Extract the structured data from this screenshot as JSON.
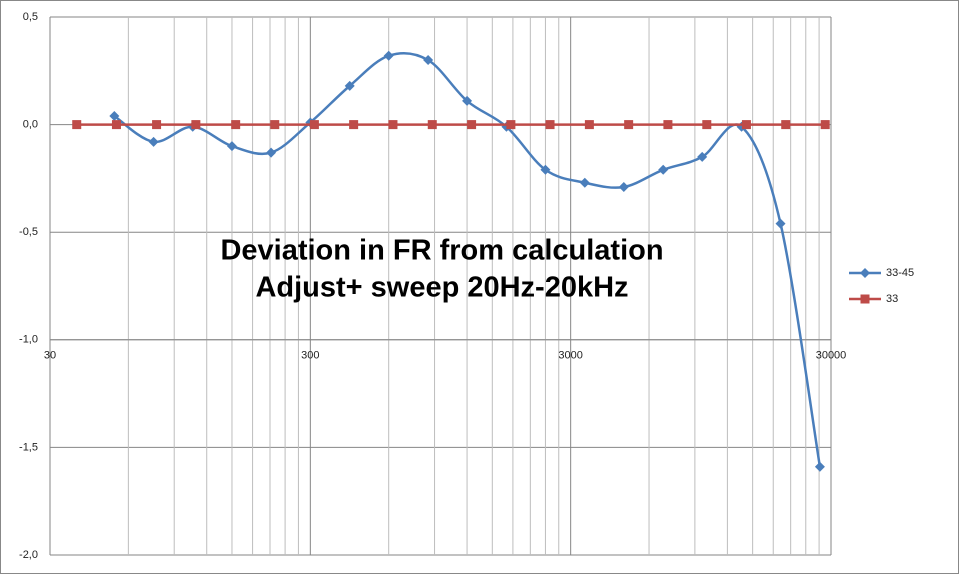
{
  "chart_data": {
    "type": "line",
    "annotation": [
      "Deviation in FR from calculation",
      "Adjust+ sweep 20Hz-20kHz"
    ],
    "xscale": "log",
    "xlim": [
      30,
      30000
    ],
    "xticks": [
      30,
      300,
      3000,
      30000
    ],
    "ylim": [
      -2,
      0.5
    ],
    "yticks": [
      {
        "value": -2,
        "label": "-2,0"
      },
      {
        "value": -1.5,
        "label": "-1,5"
      },
      {
        "value": -1,
        "label": "-1,0"
      },
      {
        "value": -0.5,
        "label": "-0,5"
      },
      {
        "value": 0,
        "label": "0,0"
      },
      {
        "value": 0.5,
        "label": "0,5"
      }
    ],
    "x_axis_crosses": -1,
    "grid": true,
    "legend": "right",
    "series": [
      {
        "name": "33-45",
        "color": "#4a7ebb",
        "marker": "diamond",
        "x": [
          53,
          75,
          106,
          150,
          212,
          300,
          425,
          600,
          850,
          1200,
          1700,
          2400,
          3400,
          4800,
          6800,
          9600,
          13600,
          19200,
          27200
        ],
        "values": [
          0.04,
          -0.08,
          -0.01,
          -0.1,
          -0.13,
          0.01,
          0.18,
          0.32,
          0.3,
          0.11,
          -0.01,
          -0.21,
          -0.27,
          -0.29,
          -0.21,
          -0.15,
          -0.01,
          -0.46,
          -1.59
        ]
      },
      {
        "name": "33",
        "color": "#be4b48",
        "marker": "square",
        "x": [
          38,
          54,
          77,
          109,
          155,
          219,
          311,
          440,
          623,
          882,
          1249,
          1768,
          2500,
          3540,
          5010,
          7090,
          10000,
          14200,
          20100,
          28500
        ],
        "values": [
          0,
          0,
          0,
          0,
          0,
          0,
          0,
          0,
          0,
          0,
          0,
          0,
          0,
          0,
          0,
          0,
          0,
          0,
          0,
          0
        ]
      }
    ]
  }
}
